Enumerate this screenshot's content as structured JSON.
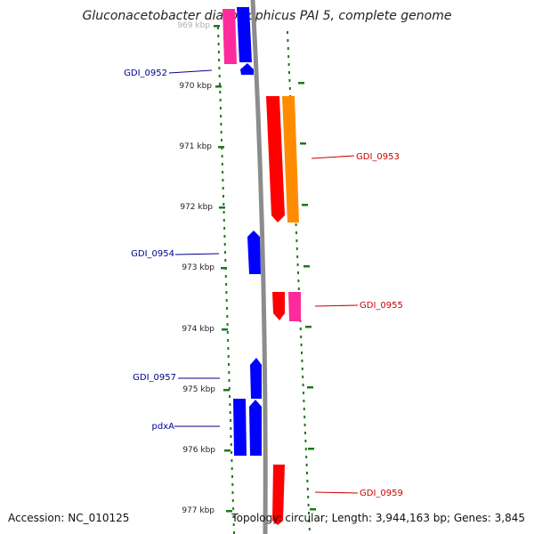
{
  "title": "Gluconacetobacter diazotrophicus PAI 5, complete genome",
  "footer": {
    "accession": "Accession: NC_010125",
    "summary": "Topology: circular; Length: 3,944,163 bp; Genes: 3,845"
  },
  "scale_labels": [
    "969 kbp",
    "970 kbp",
    "971 kbp",
    "972 kbp",
    "973 kbp",
    "974 kbp",
    "975 kbp",
    "976 kbp",
    "977 kbp"
  ],
  "gene_labels": {
    "left": [
      "GDI_0952",
      "GDI_0954",
      "GDI_0957",
      "pdxA"
    ],
    "right": [
      "GDI_0953",
      "GDI_0955",
      "GDI_0959"
    ]
  },
  "colors": {
    "blue": "#0000ff",
    "red": "#ff0000",
    "orange": "#ff8c00",
    "pink": "#ff2a9c",
    "tick_green": "#1a7a1a",
    "backbone": "#8c8c8c",
    "left_label": "#00008b",
    "right_label": "#cc0000"
  }
}
